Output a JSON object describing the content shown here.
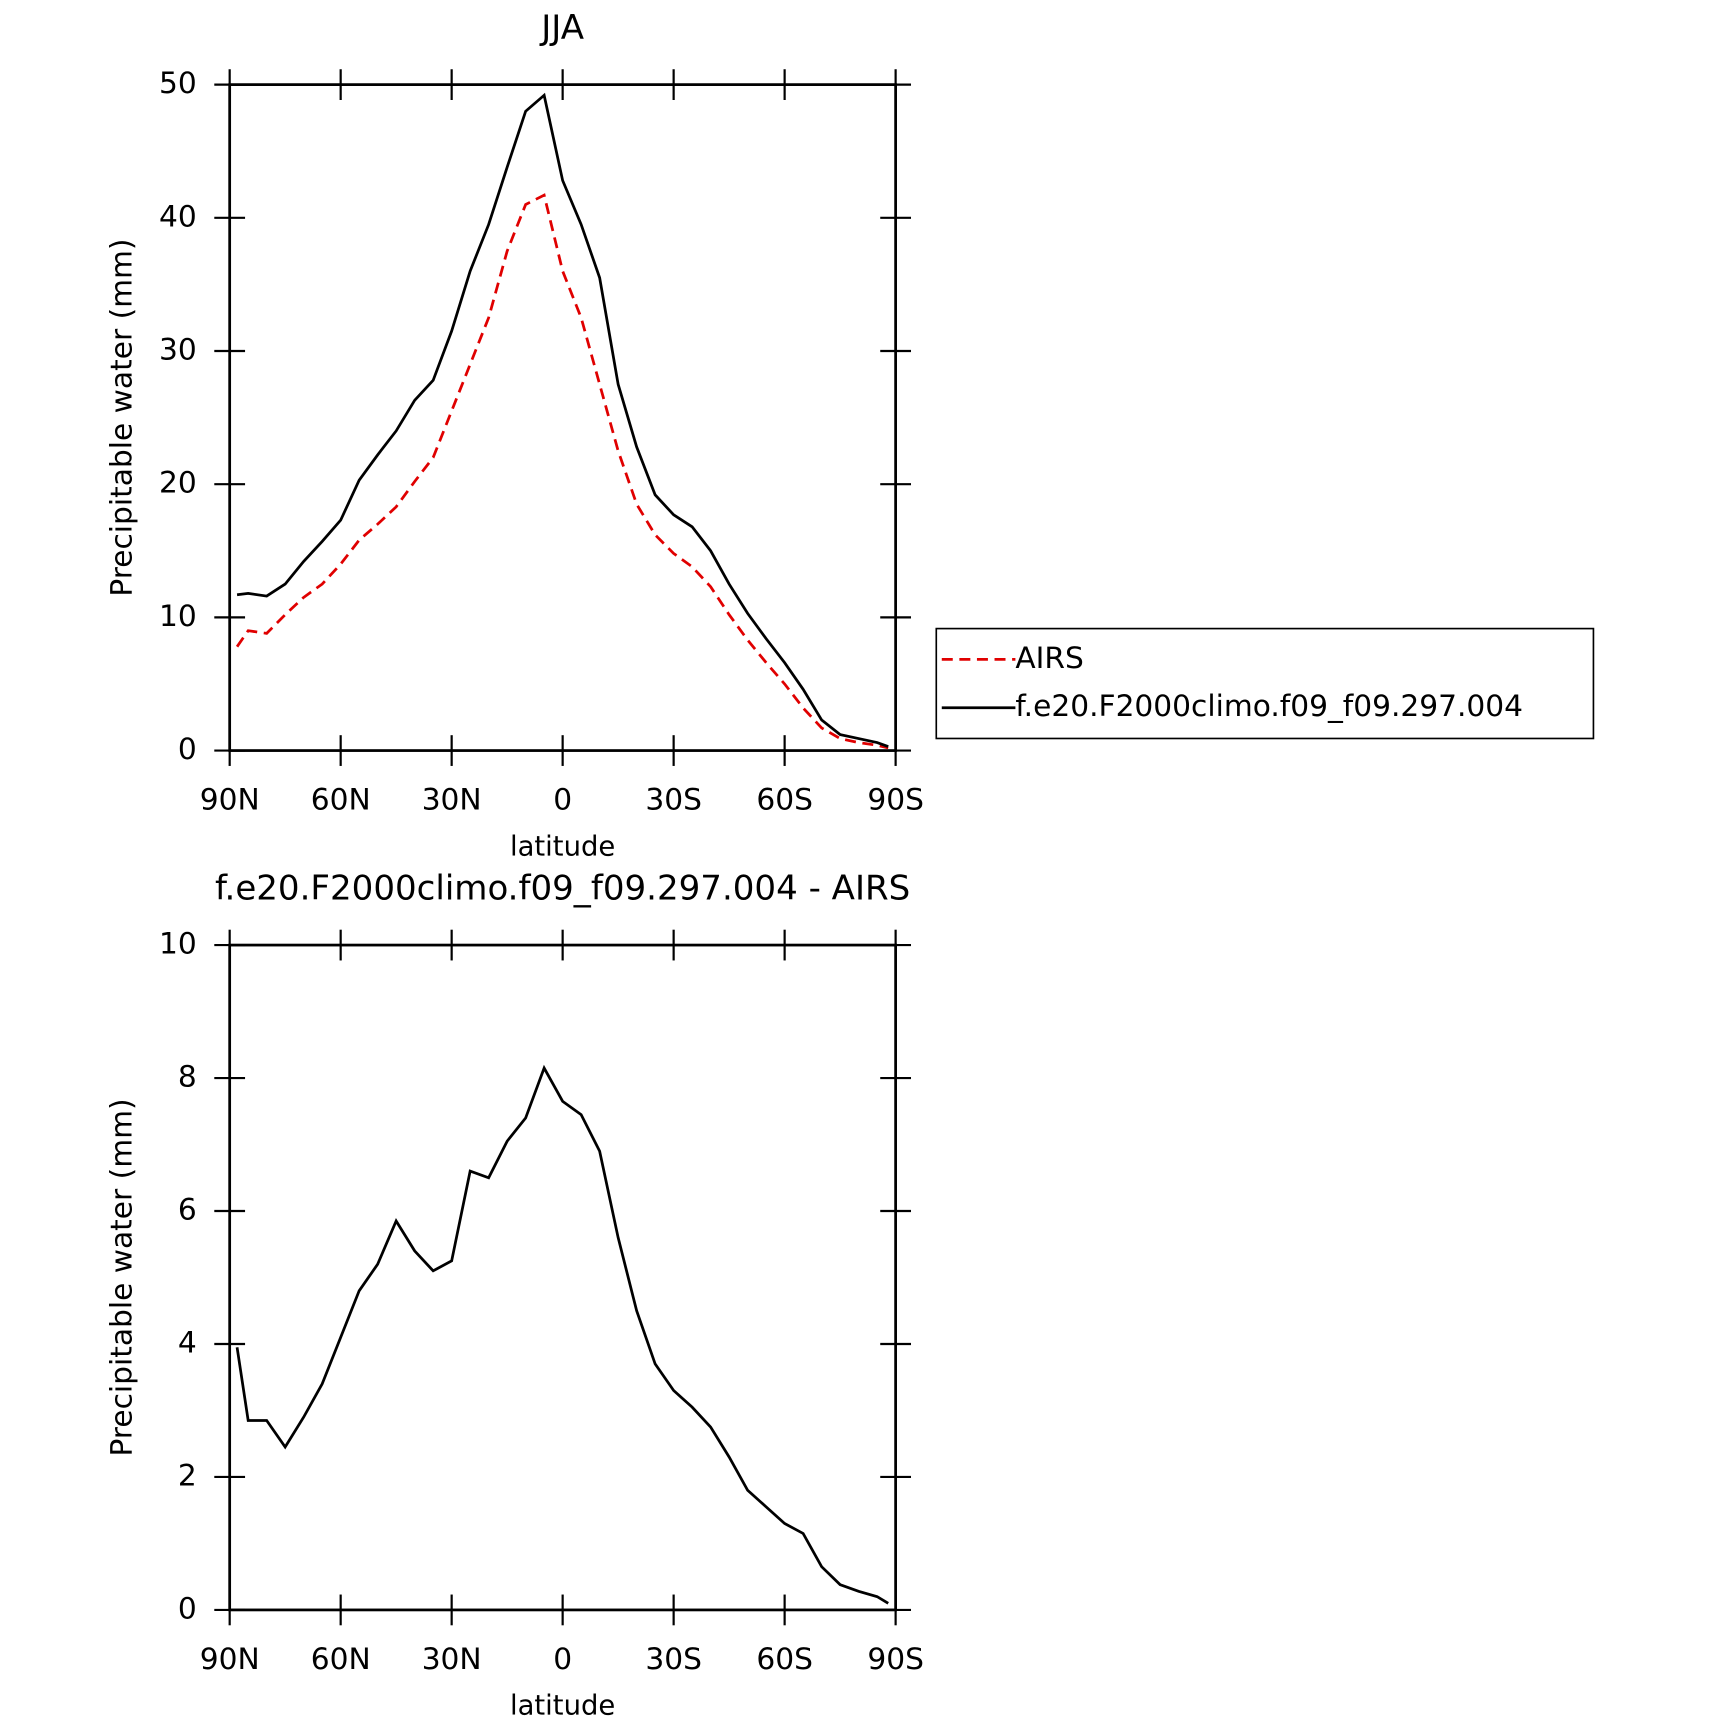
{
  "chart_data": [
    {
      "type": "line",
      "title": "JJA",
      "xlabel": "latitude",
      "ylabel": "Precipitable water (mm)",
      "x": [
        88,
        85,
        80,
        75,
        70,
        65,
        60,
        55,
        50,
        45,
        40,
        35,
        30,
        25,
        20,
        15,
        10,
        5,
        0,
        -5,
        -10,
        -15,
        -20,
        -25,
        -30,
        -35,
        -40,
        -45,
        -50,
        -55,
        -60,
        -65,
        -70,
        -75,
        -80,
        -85,
        -88
      ],
      "series": [
        {
          "name": "AIRS",
          "color": "#e00000",
          "linestyle": "dashed",
          "values": [
            7.8,
            9.0,
            8.8,
            10.2,
            11.5,
            12.5,
            14.0,
            15.8,
            17.0,
            18.3,
            20.2,
            22.0,
            25.5,
            29.0,
            32.5,
            37.5,
            41.0,
            41.7,
            36.0,
            32.5,
            27.5,
            22.5,
            18.5,
            16.2,
            14.8,
            13.8,
            12.3,
            10.2,
            8.3,
            6.6,
            5.0,
            3.2,
            1.7,
            0.9,
            0.6,
            0.4,
            0.2
          ]
        },
        {
          "name": "f.e20.F2000climo.f09_f09.297.004",
          "color": "#000000",
          "linestyle": "solid",
          "values": [
            11.7,
            11.8,
            11.6,
            12.5,
            14.2,
            15.7,
            17.3,
            20.3,
            22.2,
            24.0,
            26.3,
            27.8,
            31.5,
            36.0,
            39.5,
            43.8,
            48.0,
            49.2,
            42.8,
            39.5,
            35.5,
            27.5,
            22.8,
            19.2,
            17.7,
            16.8,
            15.0,
            12.5,
            10.3,
            8.4,
            6.6,
            4.6,
            2.3,
            1.2,
            0.9,
            0.6,
            0.3
          ]
        }
      ],
      "xlim": [
        90,
        -90
      ],
      "xticks": [
        {
          "value": 90,
          "label": "90N"
        },
        {
          "value": 60,
          "label": "60N"
        },
        {
          "value": 30,
          "label": "30N"
        },
        0,
        {
          "value": -30,
          "label": "30S"
        },
        {
          "value": -60,
          "label": "60S"
        },
        {
          "value": -90,
          "label": "90S"
        }
      ],
      "ylim": [
        0,
        50
      ],
      "yticks": [
        0,
        10,
        20,
        30,
        40,
        50
      ],
      "legend": "outside-right"
    },
    {
      "type": "line",
      "title": "f.e20.F2000climo.f09_f09.297.004 - AIRS",
      "xlabel": "latitude",
      "ylabel": "Precipitable water (mm)",
      "x": [
        88,
        85,
        80,
        75,
        70,
        65,
        60,
        55,
        50,
        45,
        40,
        35,
        30,
        25,
        20,
        15,
        10,
        5,
        0,
        -5,
        -10,
        -15,
        -20,
        -25,
        -30,
        -35,
        -40,
        -45,
        -50,
        -55,
        -60,
        -65,
        -70,
        -75,
        -80,
        -85,
        -88
      ],
      "series": [
        {
          "color": "#000000",
          "linestyle": "solid",
          "values": [
            3.95,
            2.85,
            2.85,
            2.45,
            2.9,
            3.4,
            4.1,
            4.8,
            5.2,
            5.85,
            5.4,
            5.1,
            5.25,
            6.6,
            6.5,
            7.05,
            7.4,
            8.15,
            7.65,
            7.45,
            6.9,
            5.6,
            4.5,
            3.7,
            3.3,
            3.05,
            2.75,
            2.3,
            1.8,
            1.55,
            1.3,
            1.15,
            0.65,
            0.38,
            0.28,
            0.2,
            0.1
          ]
        }
      ],
      "xlim": [
        90,
        -90
      ],
      "xticks": [
        {
          "value": 90,
          "label": "90N"
        },
        {
          "value": 60,
          "label": "60N"
        },
        {
          "value": 30,
          "label": "30N"
        },
        0,
        {
          "value": -30,
          "label": "30S"
        },
        {
          "value": -60,
          "label": "60S"
        },
        {
          "value": -90,
          "label": "90S"
        }
      ],
      "ylim": [
        0,
        10
      ],
      "yticks": [
        0,
        2,
        4,
        6,
        8,
        10
      ]
    }
  ]
}
